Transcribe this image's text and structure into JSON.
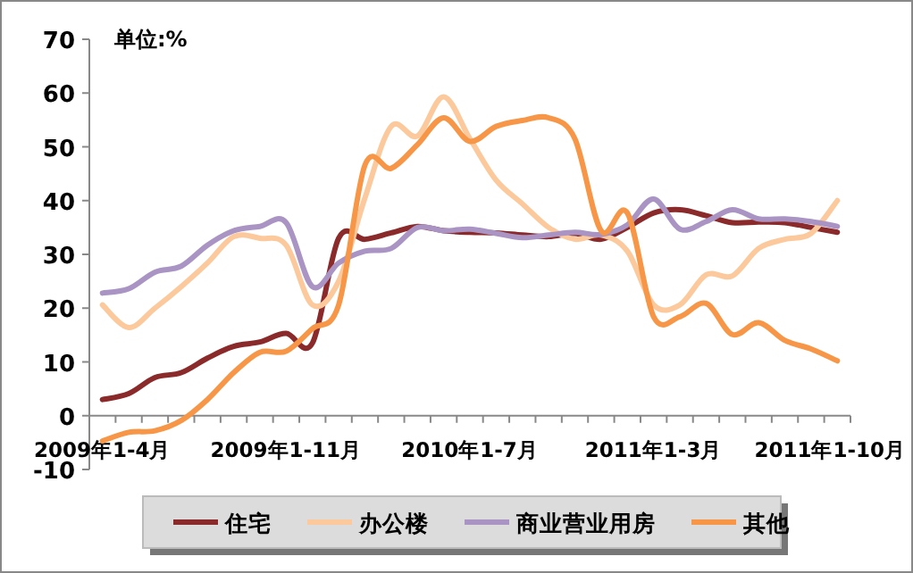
{
  "chart_data": {
    "type": "line",
    "annotations": [
      "单位:%"
    ],
    "categories": [
      "2009年1-4月",
      null,
      null,
      null,
      null,
      null,
      null,
      "2009年1-11月",
      null,
      null,
      null,
      null,
      null,
      null,
      "2010年1-7月",
      null,
      null,
      null,
      null,
      null,
      null,
      "2011年1-3月",
      null,
      null,
      null,
      null,
      null,
      null,
      "2011年1-10月"
    ],
    "series": [
      {
        "name": "住宅",
        "color": "#8b2a2a",
        "values": [
          3.0,
          4.1,
          7.1,
          8.0,
          10.7,
          12.9,
          13.7,
          15.3,
          13.5,
          33.0,
          32.8,
          34.0,
          35.2,
          34.4,
          34.1,
          34.0,
          33.6,
          33.3,
          33.9,
          32.8,
          35.0,
          37.7,
          38.3,
          37.2,
          35.9,
          36.0,
          35.9,
          35.0,
          34.1
        ]
      },
      {
        "name": "办公楼",
        "color": "#fcc99c",
        "values": [
          20.6,
          16.4,
          20.0,
          24.0,
          28.4,
          33.3,
          33.0,
          31.7,
          20.6,
          25.0,
          40.5,
          53.8,
          52.0,
          59.3,
          51.5,
          43.8,
          39.4,
          35.0,
          32.8,
          33.6,
          30.6,
          20.6,
          20.6,
          26.2,
          26.0,
          31.1,
          32.8,
          33.9,
          40.0
        ]
      },
      {
        "name": "商业营业用房",
        "color": "#a994c4",
        "values": [
          22.8,
          23.6,
          26.7,
          27.8,
          31.7,
          34.4,
          35.2,
          35.9,
          24.0,
          28.4,
          30.6,
          31.1,
          35.0,
          34.4,
          34.7,
          33.9,
          33.1,
          33.6,
          34.1,
          33.7,
          35.5,
          40.3,
          34.7,
          36.1,
          38.3,
          36.6,
          36.6,
          36.1,
          35.2
        ]
      },
      {
        "name": "其他",
        "color": "#f79646",
        "values": [
          -4.7,
          -3.1,
          -2.8,
          -0.9,
          3.0,
          8.0,
          11.8,
          12.0,
          16.2,
          20.6,
          46.6,
          46.0,
          50.4,
          55.4,
          51.0,
          53.8,
          54.9,
          55.4,
          51.5,
          34.4,
          37.7,
          18.4,
          18.4,
          20.9,
          15.1,
          17.3,
          14.0,
          12.4,
          10.2
        ]
      }
    ],
    "ylim": [
      -10,
      70
    ],
    "yticks": [
      -10,
      0,
      10,
      20,
      30,
      40,
      50,
      60,
      70
    ],
    "legend": "bottom",
    "marker": "none",
    "line_style": "solid"
  }
}
